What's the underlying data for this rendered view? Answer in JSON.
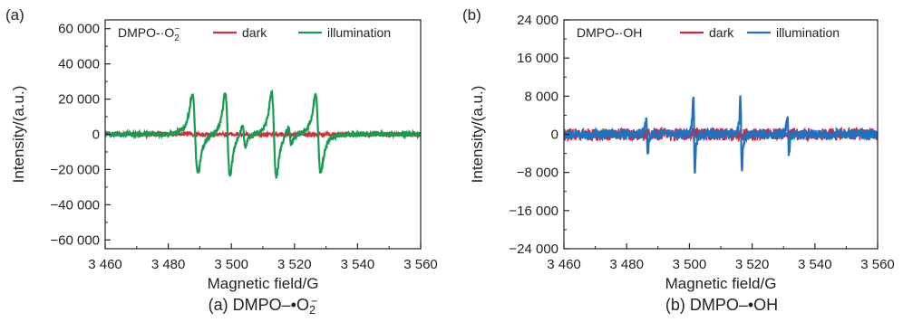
{
  "chart_data": [
    {
      "type": "line",
      "panel_label": "(a)",
      "caption": {
        "prefix": "(a) DMPO–•O",
        "sub": "2",
        "sup": "−"
      },
      "annotation": {
        "prefix": "DMPO-·O",
        "sub": "2",
        "sup": "−"
      },
      "xlabel": "Magnetic field/G",
      "ylabel": "Intensity/(a.u.)",
      "xlim": [
        3460,
        3560
      ],
      "ylim": [
        -65000,
        65000
      ],
      "xticks": [
        3460,
        3480,
        3500,
        3520,
        3540,
        3560
      ],
      "xtick_labels": [
        "3 460",
        "3 480",
        "3 500",
        "3 520",
        "3 540",
        "3 560"
      ],
      "yticks": [
        -60000,
        -40000,
        -20000,
        0,
        20000,
        40000,
        60000
      ],
      "ytick_labels": [
        "−60 000",
        "−40 000",
        "−20 000",
        "0",
        "20 000",
        "40 000",
        "60 000"
      ],
      "legend_position": "top-right",
      "series": [
        {
          "name": "dark",
          "color": "#c8323f",
          "noise": 1200,
          "lines": []
        },
        {
          "name": "illumination",
          "color": "#1a9a50",
          "noise": 1300,
          "lines": [
            {
              "x": 3488.5,
              "amp": 45000,
              "w": 1.5
            },
            {
              "x": 3498.8,
              "amp": 47000,
              "w": 1.3
            },
            {
              "x": 3504.0,
              "amp": 13000,
              "w": 0.8
            },
            {
              "x": 3513.5,
              "amp": 48000,
              "w": 1.3
            },
            {
              "x": 3518.5,
              "amp": 11000,
              "w": 0.8
            },
            {
              "x": 3527.5,
              "amp": 44000,
              "w": 1.4
            }
          ]
        }
      ]
    },
    {
      "type": "line",
      "panel_label": "(b)",
      "caption": {
        "prefix": "(b) DMPO–•OH",
        "sub": "",
        "sup": ""
      },
      "annotation": {
        "prefix": "DMPO-·OH",
        "sub": "",
        "sup": ""
      },
      "xlabel": "Magnetic field/G",
      "ylabel": "Intensity/(a.u.)",
      "xlim": [
        3460,
        3560
      ],
      "ylim": [
        -24000,
        24000
      ],
      "xticks": [
        3460,
        3480,
        3500,
        3520,
        3540,
        3560
      ],
      "xtick_labels": [
        "3 460",
        "3 480",
        "3 500",
        "3 520",
        "3 540",
        "3 560"
      ],
      "yticks": [
        -24000,
        -16000,
        -8000,
        0,
        8000,
        16000,
        24000
      ],
      "ytick_labels": [
        "−24 000",
        "−16 000",
        "−8 000",
        "0",
        "8 000",
        "16 000",
        "24 000"
      ],
      "legend_position": "top-right",
      "series": [
        {
          "name": "dark",
          "color": "#d0283c",
          "noise": 1300,
          "lines": []
        },
        {
          "name": "illumination",
          "color": "#1f72c0",
          "noise": 1000,
          "lines": [
            {
              "x": 3486.5,
              "amp": 8000,
              "w": 0.4
            },
            {
              "x": 3501.5,
              "amp": 15000,
              "w": 0.4
            },
            {
              "x": 3516.5,
              "amp": 15000,
              "w": 0.4
            },
            {
              "x": 3531.5,
              "amp": 8000,
              "w": 0.4
            }
          ]
        }
      ]
    }
  ]
}
